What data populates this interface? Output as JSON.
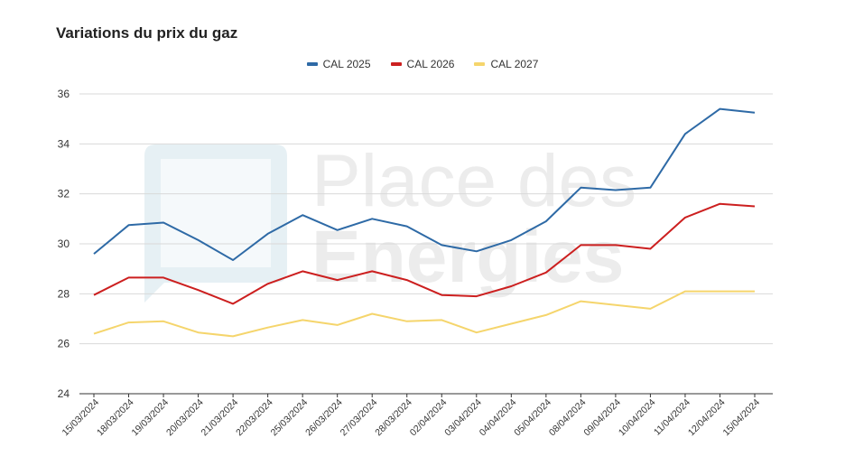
{
  "chart_data": {
    "type": "line",
    "title": "Variations du prix du gaz",
    "xlabel": "",
    "ylabel": "",
    "ylim": [
      24,
      36
    ],
    "yticks": [
      24,
      26,
      28,
      30,
      32,
      34,
      36
    ],
    "grid": true,
    "legend_position": "top-center",
    "x": [
      "15/03/2024",
      "18/03/2024",
      "19/03/2024",
      "20/03/2024",
      "21/03/2024",
      "22/03/2024",
      "25/03/2024",
      "26/03/2024",
      "27/03/2024",
      "28/03/2024",
      "02/04/2024",
      "03/04/2024",
      "04/04/2024",
      "05/04/2024",
      "08/04/2024",
      "09/04/2024",
      "10/04/2024",
      "11/04/2024",
      "12/04/2024",
      "15/04/2024"
    ],
    "series": [
      {
        "name": "CAL 2025",
        "color": "#2e6aa6",
        "values": [
          29.6,
          30.75,
          30.85,
          30.15,
          29.35,
          30.4,
          31.15,
          30.55,
          31.0,
          30.7,
          29.95,
          29.7,
          30.15,
          30.9,
          32.25,
          32.15,
          32.25,
          34.4,
          35.4,
          35.25
        ]
      },
      {
        "name": "CAL 2026",
        "color": "#cc1f1f",
        "values": [
          27.95,
          28.65,
          28.65,
          28.15,
          27.6,
          28.4,
          28.9,
          28.55,
          28.9,
          28.55,
          27.95,
          27.9,
          28.3,
          28.85,
          29.95,
          29.95,
          29.8,
          31.05,
          31.6,
          31.5
        ]
      },
      {
        "name": "CAL 2027",
        "color": "#f5d56c",
        "values": [
          26.4,
          26.85,
          26.9,
          26.45,
          26.3,
          26.65,
          26.95,
          26.75,
          27.2,
          26.9,
          26.95,
          26.45,
          26.8,
          27.15,
          27.7,
          27.55,
          27.4,
          28.1,
          28.1,
          28.1
        ]
      }
    ]
  },
  "watermark": {
    "line1": "Place des",
    "line2": "Energies"
  }
}
